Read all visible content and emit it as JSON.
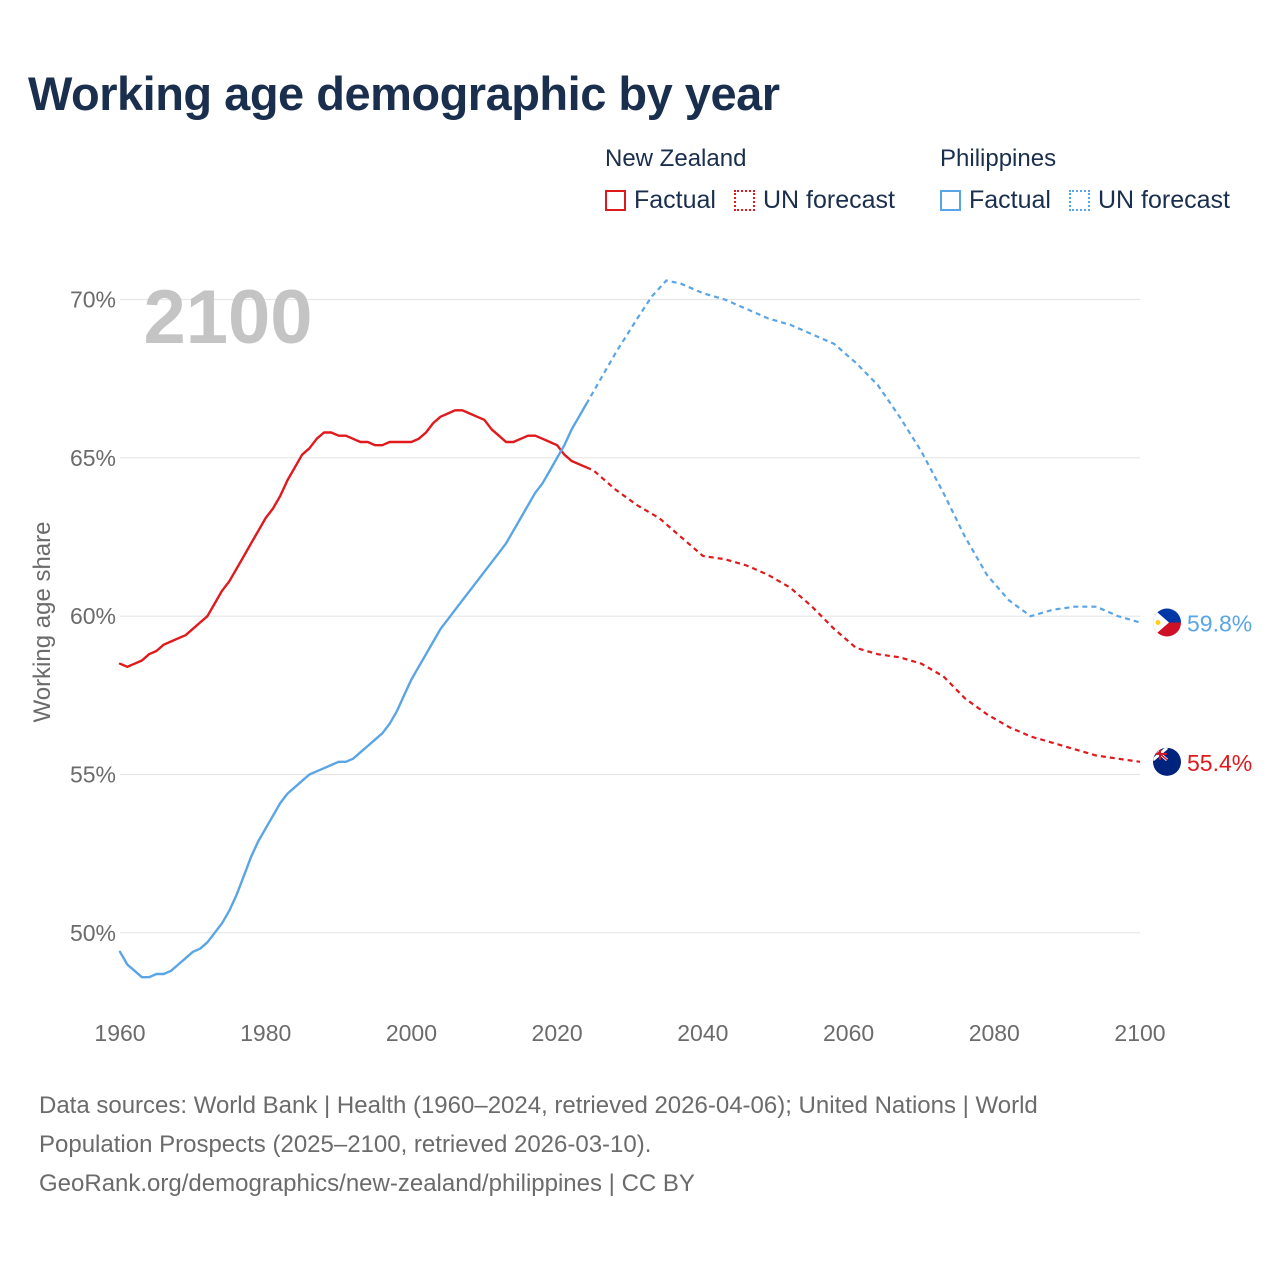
{
  "title": "Working age demographic by year",
  "legend": {
    "groups": [
      {
        "name": "New Zealand",
        "factual_label": "Factual",
        "forecast_label": "UN forecast",
        "color": "#e0191c"
      },
      {
        "name": "Philippines",
        "factual_label": "Factual",
        "forecast_label": "UN forecast",
        "color": "#5aa5e6"
      }
    ]
  },
  "year_overlay": "2100",
  "chart_data": {
    "type": "line",
    "title": "Working age demographic by year",
    "xlabel": "",
    "ylabel": "Working age share",
    "xlim": [
      1960,
      2100
    ],
    "ylim": [
      47.5,
      71.5
    ],
    "x_ticks": [
      1960,
      1980,
      2000,
      2020,
      2040,
      2060,
      2080,
      2100
    ],
    "y_ticks": [
      50,
      55,
      60,
      65,
      70
    ],
    "y_tick_labels": [
      "50%",
      "55%",
      "60%",
      "65%",
      "70%"
    ],
    "grid": true,
    "forecast_start": 2024,
    "series": [
      {
        "name": "New Zealand",
        "color": "#e0191c",
        "end_label": "55.4%",
        "points": [
          [
            1960,
            58.5
          ],
          [
            1961,
            58.4
          ],
          [
            1962,
            58.5
          ],
          [
            1963,
            58.6
          ],
          [
            1964,
            58.8
          ],
          [
            1965,
            58.9
          ],
          [
            1966,
            59.1
          ],
          [
            1967,
            59.2
          ],
          [
            1968,
            59.3
          ],
          [
            1969,
            59.4
          ],
          [
            1970,
            59.6
          ],
          [
            1971,
            59.8
          ],
          [
            1972,
            60.0
          ],
          [
            1973,
            60.4
          ],
          [
            1974,
            60.8
          ],
          [
            1975,
            61.1
          ],
          [
            1976,
            61.5
          ],
          [
            1977,
            61.9
          ],
          [
            1978,
            62.3
          ],
          [
            1979,
            62.7
          ],
          [
            1980,
            63.1
          ],
          [
            1981,
            63.4
          ],
          [
            1982,
            63.8
          ],
          [
            1983,
            64.3
          ],
          [
            1984,
            64.7
          ],
          [
            1985,
            65.1
          ],
          [
            1986,
            65.3
          ],
          [
            1987,
            65.6
          ],
          [
            1988,
            65.8
          ],
          [
            1989,
            65.8
          ],
          [
            1990,
            65.7
          ],
          [
            1991,
            65.7
          ],
          [
            1992,
            65.6
          ],
          [
            1993,
            65.5
          ],
          [
            1994,
            65.5
          ],
          [
            1995,
            65.4
          ],
          [
            1996,
            65.4
          ],
          [
            1997,
            65.5
          ],
          [
            1998,
            65.5
          ],
          [
            1999,
            65.5
          ],
          [
            2000,
            65.5
          ],
          [
            2001,
            65.6
          ],
          [
            2002,
            65.8
          ],
          [
            2003,
            66.1
          ],
          [
            2004,
            66.3
          ],
          [
            2005,
            66.4
          ],
          [
            2006,
            66.5
          ],
          [
            2007,
            66.5
          ],
          [
            2008,
            66.4
          ],
          [
            2009,
            66.3
          ],
          [
            2010,
            66.2
          ],
          [
            2011,
            65.9
          ],
          [
            2012,
            65.7
          ],
          [
            2013,
            65.5
          ],
          [
            2014,
            65.5
          ],
          [
            2015,
            65.6
          ],
          [
            2016,
            65.7
          ],
          [
            2017,
            65.7
          ],
          [
            2018,
            65.6
          ],
          [
            2019,
            65.5
          ],
          [
            2020,
            65.4
          ],
          [
            2021,
            65.1
          ],
          [
            2022,
            64.9
          ],
          [
            2023,
            64.8
          ],
          [
            2024,
            64.7
          ],
          [
            2025,
            64.6
          ],
          [
            2028,
            64.0
          ],
          [
            2031,
            63.5
          ],
          [
            2034,
            63.1
          ],
          [
            2037,
            62.5
          ],
          [
            2040,
            61.9
          ],
          [
            2043,
            61.8
          ],
          [
            2046,
            61.6
          ],
          [
            2049,
            61.3
          ],
          [
            2052,
            60.9
          ],
          [
            2055,
            60.3
          ],
          [
            2058,
            59.6
          ],
          [
            2061,
            59.0
          ],
          [
            2064,
            58.8
          ],
          [
            2067,
            58.7
          ],
          [
            2070,
            58.5
          ],
          [
            2073,
            58.1
          ],
          [
            2076,
            57.4
          ],
          [
            2079,
            56.9
          ],
          [
            2082,
            56.5
          ],
          [
            2085,
            56.2
          ],
          [
            2088,
            56.0
          ],
          [
            2091,
            55.8
          ],
          [
            2094,
            55.6
          ],
          [
            2097,
            55.5
          ],
          [
            2100,
            55.4
          ]
        ]
      },
      {
        "name": "Philippines",
        "color": "#5aa5e6",
        "end_label": "59.8%",
        "points": [
          [
            1960,
            49.4
          ],
          [
            1961,
            49.0
          ],
          [
            1962,
            48.8
          ],
          [
            1963,
            48.6
          ],
          [
            1964,
            48.6
          ],
          [
            1965,
            48.7
          ],
          [
            1966,
            48.7
          ],
          [
            1967,
            48.8
          ],
          [
            1968,
            49.0
          ],
          [
            1969,
            49.2
          ],
          [
            1970,
            49.4
          ],
          [
            1971,
            49.5
          ],
          [
            1972,
            49.7
          ],
          [
            1973,
            50.0
          ],
          [
            1974,
            50.3
          ],
          [
            1975,
            50.7
          ],
          [
            1976,
            51.2
          ],
          [
            1977,
            51.8
          ],
          [
            1978,
            52.4
          ],
          [
            1979,
            52.9
          ],
          [
            1980,
            53.3
          ],
          [
            1981,
            53.7
          ],
          [
            1982,
            54.1
          ],
          [
            1983,
            54.4
          ],
          [
            1984,
            54.6
          ],
          [
            1985,
            54.8
          ],
          [
            1986,
            55.0
          ],
          [
            1987,
            55.1
          ],
          [
            1988,
            55.2
          ],
          [
            1989,
            55.3
          ],
          [
            1990,
            55.4
          ],
          [
            1991,
            55.4
          ],
          [
            1992,
            55.5
          ],
          [
            1993,
            55.7
          ],
          [
            1994,
            55.9
          ],
          [
            1995,
            56.1
          ],
          [
            1996,
            56.3
          ],
          [
            1997,
            56.6
          ],
          [
            1998,
            57.0
          ],
          [
            1999,
            57.5
          ],
          [
            2000,
            58.0
          ],
          [
            2001,
            58.4
          ],
          [
            2002,
            58.8
          ],
          [
            2003,
            59.2
          ],
          [
            2004,
            59.6
          ],
          [
            2005,
            59.9
          ],
          [
            2006,
            60.2
          ],
          [
            2007,
            60.5
          ],
          [
            2008,
            60.8
          ],
          [
            2009,
            61.1
          ],
          [
            2010,
            61.4
          ],
          [
            2011,
            61.7
          ],
          [
            2012,
            62.0
          ],
          [
            2013,
            62.3
          ],
          [
            2014,
            62.7
          ],
          [
            2015,
            63.1
          ],
          [
            2016,
            63.5
          ],
          [
            2017,
            63.9
          ],
          [
            2018,
            64.2
          ],
          [
            2019,
            64.6
          ],
          [
            2020,
            65.0
          ],
          [
            2021,
            65.4
          ],
          [
            2022,
            65.9
          ],
          [
            2023,
            66.3
          ],
          [
            2024,
            66.7
          ],
          [
            2025,
            67.1
          ],
          [
            2028,
            68.3
          ],
          [
            2031,
            69.4
          ],
          [
            2033,
            70.1
          ],
          [
            2035,
            70.6
          ],
          [
            2037,
            70.5
          ],
          [
            2040,
            70.2
          ],
          [
            2043,
            70.0
          ],
          [
            2046,
            69.7
          ],
          [
            2049,
            69.4
          ],
          [
            2052,
            69.2
          ],
          [
            2055,
            68.9
          ],
          [
            2058,
            68.6
          ],
          [
            2061,
            68.0
          ],
          [
            2064,
            67.3
          ],
          [
            2067,
            66.3
          ],
          [
            2070,
            65.2
          ],
          [
            2073,
            63.9
          ],
          [
            2076,
            62.5
          ],
          [
            2079,
            61.3
          ],
          [
            2082,
            60.5
          ],
          [
            2085,
            60.0
          ],
          [
            2088,
            60.2
          ],
          [
            2091,
            60.3
          ],
          [
            2094,
            60.3
          ],
          [
            2097,
            60.0
          ],
          [
            2100,
            59.8
          ]
        ]
      }
    ]
  },
  "footer": {
    "line1": "Data sources: World Bank | Health (1960–2024, retrieved 2026-04-06); United Nations | World",
    "line2": "Population Prospects (2025–2100, retrieved 2026-03-10).",
    "line3": "GeoRank.org/demographics/new-zealand/philippines | CC BY"
  }
}
